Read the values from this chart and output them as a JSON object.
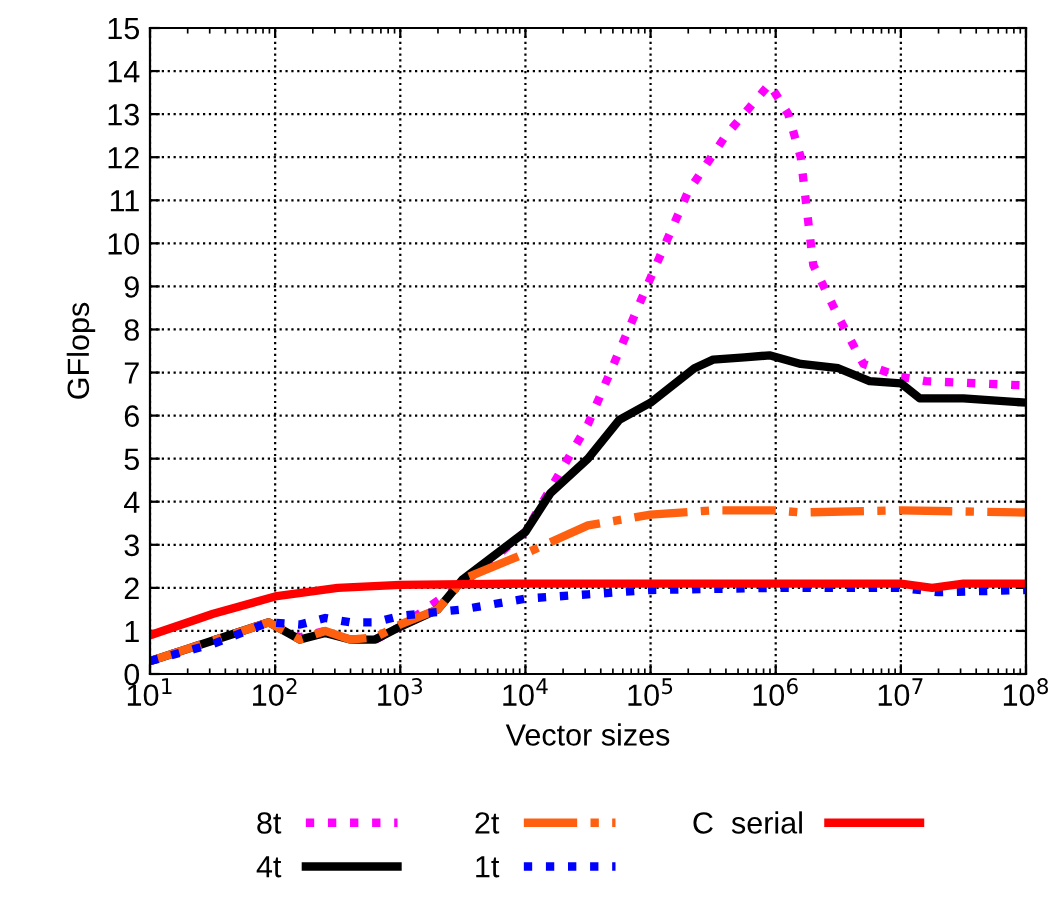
{
  "chart_data": {
    "type": "line",
    "xlabel": "Vector sizes",
    "ylabel": "GFlops",
    "log": "x",
    "grid": true,
    "legend": "bottom",
    "xlim": [
      10,
      100000000
    ],
    "xticks": [
      {
        "value": 10,
        "label": "10$^{1}$"
      },
      {
        "value": 100,
        "label": "10$^{2}$"
      },
      {
        "value": 1000,
        "label": "10$^{3}$"
      },
      {
        "value": 10000,
        "label": "10$^{4}$"
      },
      {
        "value": 100000,
        "label": "10$^{5}$"
      },
      {
        "value": 1000000,
        "label": "10$^{6}$"
      },
      {
        "value": 10000000,
        "label": "10$^{7}$"
      },
      {
        "value": 100000000,
        "label": "10$^{8}$"
      }
    ],
    "ylim": [
      0,
      15
    ],
    "yticks": [
      0,
      1,
      2,
      3,
      4,
      5,
      6,
      7,
      8,
      9,
      10,
      11,
      12,
      13,
      14,
      15
    ],
    "series": [
      {
        "name": "8t",
        "color": "#ff00ff",
        "line_style": "dotted",
        "x": [
          10,
          89,
          158,
          251,
          398,
          631,
          1000,
          3162,
          10000,
          31623,
          100000,
          199526,
          398107,
          891251,
          1258925,
          1584893,
          1995262,
          3162278,
          5011872,
          10000000,
          15848932,
          100000000
        ],
        "values": [
          0.3,
          1.2,
          0.85,
          1.0,
          null,
          0.8,
          1.1,
          2.1,
          3.3,
          5.8,
          9.2,
          11.2,
          12.5,
          13.7,
          13.0,
          12.0,
          9.5,
          8.3,
          7.2,
          6.9,
          6.8,
          6.7
        ]
      },
      {
        "name": "4t",
        "color": "#000000",
        "line_style": "solid",
        "x": [
          10,
          89,
          158,
          251,
          398,
          631,
          1000,
          1995,
          3162,
          10000,
          15849,
          31623,
          56234,
          100000,
          223872,
          316228,
          562341,
          891251,
          1584893,
          3162278,
          5623413,
          10000000,
          14125375,
          31622777,
          100000000
        ],
        "values": [
          0.3,
          1.2,
          0.8,
          0.95,
          0.8,
          0.8,
          1.1,
          1.5,
          2.2,
          3.3,
          4.2,
          5.0,
          5.9,
          6.3,
          7.1,
          7.3,
          7.35,
          7.4,
          7.2,
          7.1,
          6.8,
          6.75,
          6.4,
          6.4,
          6.3
        ]
      },
      {
        "name": "2t",
        "color": "#ff6010",
        "line_style": "dashdot",
        "x": [
          10,
          89,
          158,
          251,
          398,
          631,
          1000,
          1995,
          3162,
          10000,
          31623,
          100000,
          316228,
          1000000,
          1584893,
          10000000,
          100000000
        ],
        "values": [
          0.3,
          1.2,
          0.8,
          1.0,
          0.8,
          0.85,
          1.15,
          1.5,
          2.2,
          2.8,
          3.45,
          3.7,
          3.8,
          3.8,
          3.75,
          3.8,
          3.75
        ]
      },
      {
        "name": "1t",
        "color": "#0000ff",
        "line_style": "dotted",
        "x": [
          10,
          32,
          89,
          158,
          251,
          398,
          631,
          1000,
          3162,
          10000,
          31623,
          100000,
          1000000,
          10000000,
          19952623,
          100000000
        ],
        "values": [
          0.3,
          0.7,
          1.2,
          1.15,
          1.3,
          1.2,
          1.2,
          1.35,
          1.5,
          1.75,
          1.85,
          1.95,
          2.0,
          2.0,
          1.9,
          1.95
        ]
      },
      {
        "name": "C  serial",
        "color": "#ff0000",
        "line_style": "solid",
        "x": [
          10,
          32,
          100,
          316,
          1000,
          10000,
          100000,
          1000000,
          10000000,
          17782794,
          31622777,
          100000000
        ],
        "values": [
          0.9,
          1.4,
          1.8,
          2.0,
          2.07,
          2.1,
          2.1,
          2.1,
          2.1,
          2.0,
          2.1,
          2.1
        ]
      }
    ]
  }
}
